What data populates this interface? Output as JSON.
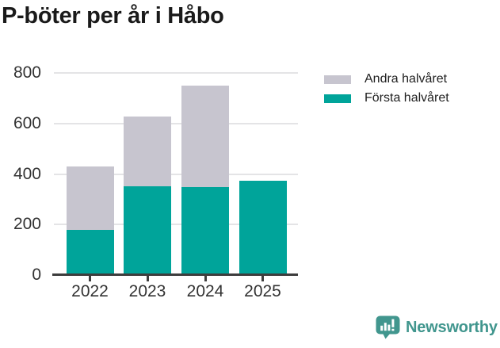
{
  "chart_data": {
    "type": "bar",
    "stacked": true,
    "title": "P-böter per år i Håbo",
    "categories": [
      "2022",
      "2023",
      "2024",
      "2025"
    ],
    "series": [
      {
        "name": "Första halvåret",
        "color": "#00a49a",
        "values": [
          180,
          352,
          349,
          374
        ]
      },
      {
        "name": "Andra halvåret",
        "color": "#c7c5cf",
        "values": [
          250,
          274,
          400,
          0
        ]
      }
    ],
    "xlabel": "",
    "ylabel": "",
    "ylim": [
      0,
      800
    ],
    "yticks": [
      0,
      200,
      400,
      600,
      800
    ],
    "grid": true,
    "legend_position": "top-right"
  },
  "legend": {
    "entries": [
      {
        "label": "Andra halvåret",
        "color": "#c7c5cf"
      },
      {
        "label": "Första halvåret",
        "color": "#00a49a"
      }
    ]
  },
  "branding": {
    "logo_text": "Newsworthy",
    "logo_color": "#41968e",
    "icon": "newsworthy-speech-bubble-chart-icon"
  },
  "colors": {
    "bar_first_half": "#00a49a",
    "bar_second_half": "#c7c5cf",
    "axis": "#3d3d3d",
    "gridline": "#e4e4e6",
    "axis_text": "#333333",
    "title_text": "#1a1a1a",
    "background": "#ffffff"
  }
}
